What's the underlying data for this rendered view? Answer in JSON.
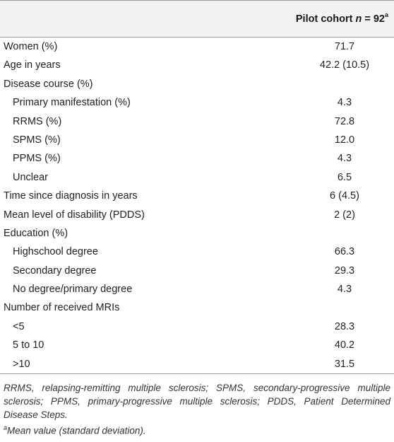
{
  "header": {
    "prefix": "Pilot cohort ",
    "n_symbol": "n",
    "equals": " = 92",
    "sup": "a"
  },
  "rows": [
    {
      "label": "Women (%)",
      "value": "71.7",
      "indent": false
    },
    {
      "label": "Age in years",
      "value": "42.2 (10.5)",
      "indent": false
    },
    {
      "label": "Disease course (%)",
      "value": "",
      "indent": false
    },
    {
      "label": "Primary manifestation (%)",
      "value": "4.3",
      "indent": true
    },
    {
      "label": "RRMS (%)",
      "value": "72.8",
      "indent": true
    },
    {
      "label": "SPMS (%)",
      "value": "12.0",
      "indent": true
    },
    {
      "label": "PPMS (%)",
      "value": "4.3",
      "indent": true
    },
    {
      "label": "Unclear",
      "value": "6.5",
      "indent": true
    },
    {
      "label": "Time since diagnosis in years",
      "value": "6 (4.5)",
      "indent": false
    },
    {
      "label": "Mean level of disability (PDDS)",
      "value": "2 (2)",
      "indent": false
    },
    {
      "label": "Education (%)",
      "value": "",
      "indent": false
    },
    {
      "label": "Highschool degree",
      "value": "66.3",
      "indent": true
    },
    {
      "label": "Secondary degree",
      "value": "29.3",
      "indent": true
    },
    {
      "label": "No degree/primary degree",
      "value": "4.3",
      "indent": true
    },
    {
      "label": "Number of received MRIs",
      "value": "",
      "indent": false
    },
    {
      "label": "<5",
      "value": "28.3",
      "indent": true
    },
    {
      "label": "5 to 10",
      "value": "40.2",
      "indent": true
    },
    {
      "label": ">10",
      "value": "31.5",
      "indent": true
    }
  ],
  "footnotes": {
    "abbreviations": "RRMS, relapsing-remitting multiple sclerosis; SPMS, secondary-progressive multiple sclerosis; PPMS, primary-progressive multiple sclerosis; PDDS, Patient Determined Disease Steps.",
    "a_mark": "a",
    "a_text": "Mean value (standard deviation)."
  }
}
